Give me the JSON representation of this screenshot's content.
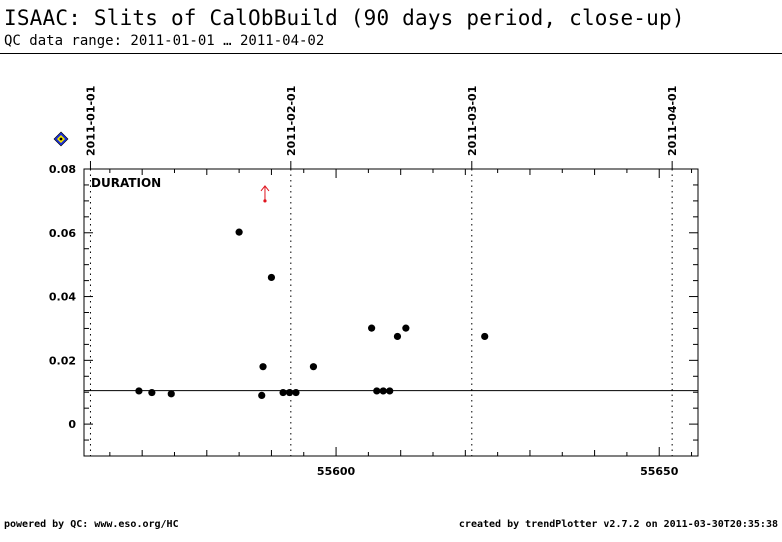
{
  "header": {
    "title": "ISAAC: Slits of CalObBuild (90 days period, close-up)",
    "subtitle": "QC data range: 2011-01-01 … 2011-04-02"
  },
  "footer": {
    "left": "powered by QC: www.eso.org/HC",
    "right": "created by trendPlotter v2.7.2 on 2011-03-30T20:35:38"
  },
  "legend_icon": "diamond-icon",
  "chart_data": {
    "type": "scatter",
    "panel_label": "DURATION",
    "xlim": [
      55561,
      55656
    ],
    "ylim": [
      -0.01,
      0.08
    ],
    "x_ticks": [
      55600,
      55650
    ],
    "x_tick_labels": [
      "55600",
      "55650"
    ],
    "y_ticks": [
      0,
      0.02,
      0.04,
      0.06,
      0.08
    ],
    "y_tick_labels": [
      "0",
      "0.02",
      "0.04",
      "0.06",
      "0.08"
    ],
    "reference_line": 0.0105,
    "date_markers": [
      {
        "label": "2011-01-01",
        "x": 55562
      },
      {
        "label": "2011-02-01",
        "x": 55593
      },
      {
        "label": "2011-03-01",
        "x": 55621
      },
      {
        "label": "2011-04-01",
        "x": 55652
      }
    ],
    "outlier_arrow": {
      "x": 55589,
      "y": 0.07
    },
    "points": [
      {
        "x": 55569.5,
        "y": 0.0104
      },
      {
        "x": 55571.5,
        "y": 0.0099
      },
      {
        "x": 55574.5,
        "y": 0.0095
      },
      {
        "x": 55585.0,
        "y": 0.0602
      },
      {
        "x": 55588.5,
        "y": 0.009
      },
      {
        "x": 55588.7,
        "y": 0.018
      },
      {
        "x": 55590.0,
        "y": 0.046
      },
      {
        "x": 55591.8,
        "y": 0.0099
      },
      {
        "x": 55592.8,
        "y": 0.0099
      },
      {
        "x": 55593.8,
        "y": 0.0099
      },
      {
        "x": 55596.5,
        "y": 0.018
      },
      {
        "x": 55605.5,
        "y": 0.0301
      },
      {
        "x": 55606.3,
        "y": 0.0104
      },
      {
        "x": 55607.3,
        "y": 0.0104
      },
      {
        "x": 55608.3,
        "y": 0.0104
      },
      {
        "x": 55609.5,
        "y": 0.0275
      },
      {
        "x": 55610.8,
        "y": 0.0301
      },
      {
        "x": 55623.0,
        "y": 0.0275
      }
    ]
  }
}
